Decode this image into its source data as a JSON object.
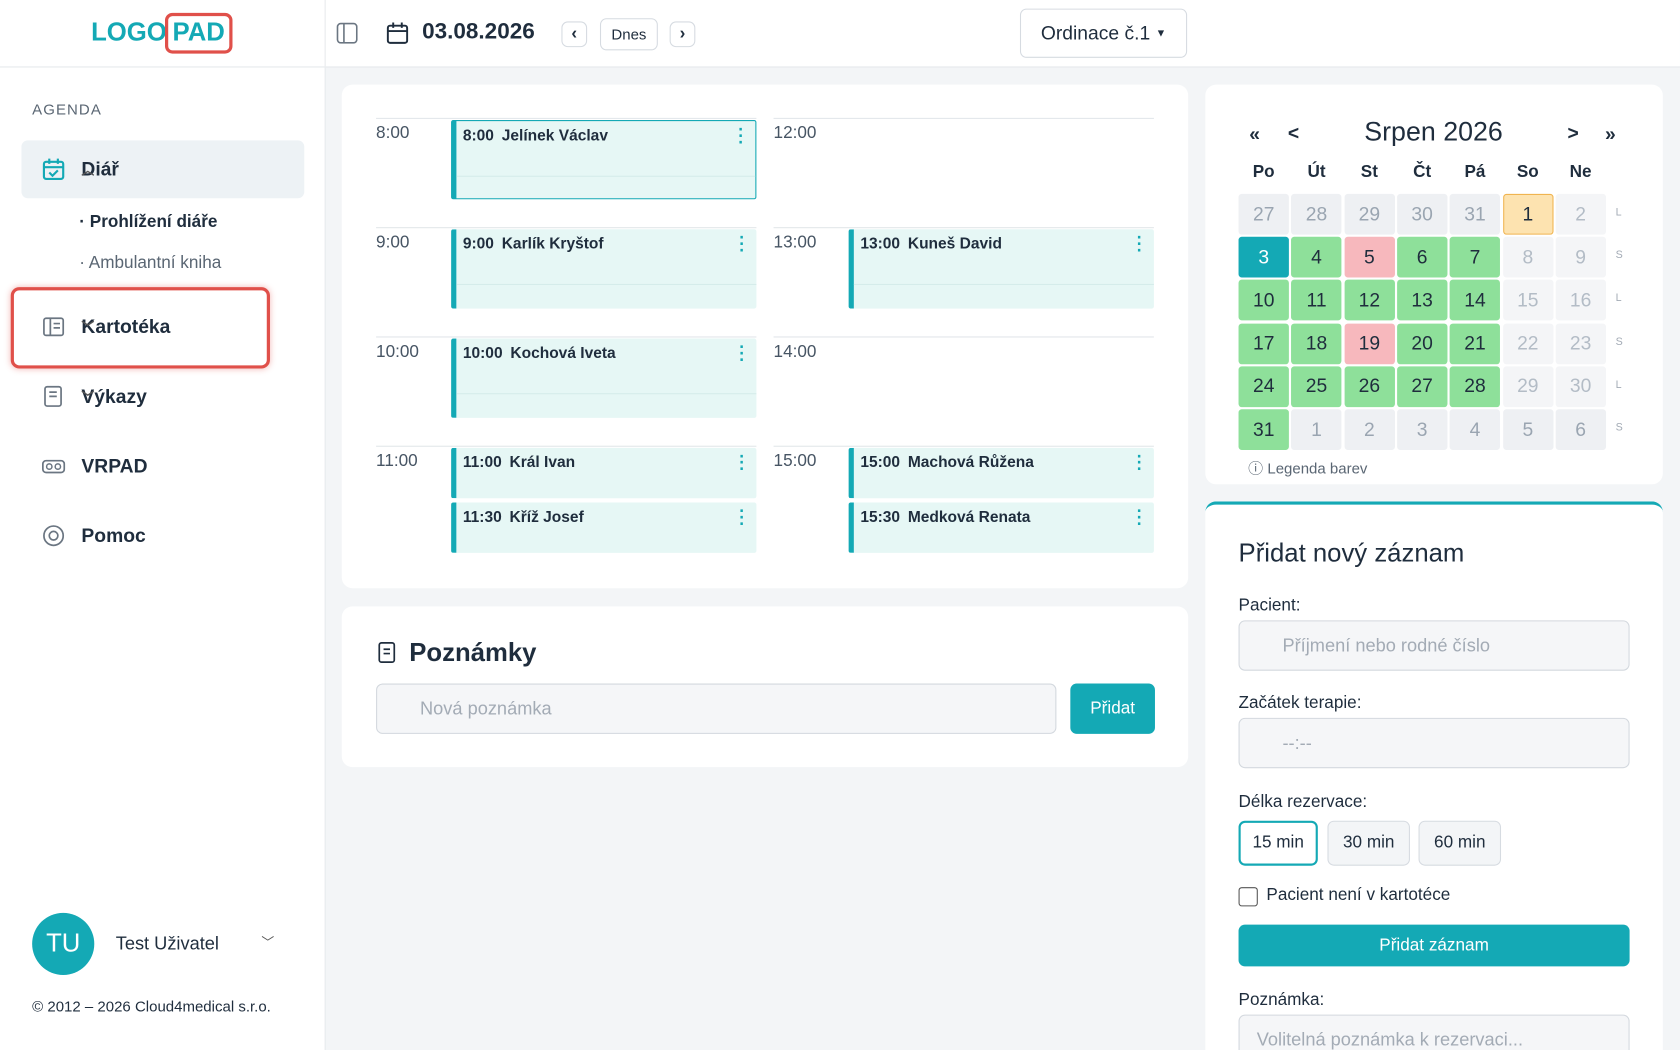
{
  "logo": {
    "left": "LOGO",
    "right": "PAD"
  },
  "sidebar": {
    "section": "AGENDA",
    "nav": [
      {
        "label": "Diář",
        "children": [
          "Prohlížení diáře",
          "Ambulantní kniha"
        ]
      },
      {
        "label": "Kartotéka"
      },
      {
        "label": "Výkazy"
      },
      {
        "label": "VRPAD"
      },
      {
        "label": "Pomoc"
      }
    ],
    "user": {
      "initials": "TU",
      "name": "Test Uživatel"
    },
    "footer": "© 2012 – 2026 Cloud4medical s.r.o."
  },
  "topbar": {
    "date": "03.08.2026",
    "today": "Dnes",
    "office": "Ordinace č.1"
  },
  "schedule": {
    "columns": [
      {
        "hours": [
          {
            "time": "8:00",
            "appointments": [
              {
                "time": "8:00",
                "name": "Jelínek Václav"
              }
            ]
          },
          {
            "time": "9:00",
            "appointments": [
              {
                "time": "9:00",
                "name": "Karlík Kryštof"
              }
            ]
          },
          {
            "time": "10:00",
            "appointments": [
              {
                "time": "10:00",
                "name": "Kochová Iveta"
              }
            ]
          },
          {
            "time": "11:00",
            "appointments": [
              {
                "time": "11:00",
                "name": "Král Ivan"
              },
              {
                "time": "11:30",
                "name": "Kříž Josef"
              }
            ]
          }
        ]
      },
      {
        "hours": [
          {
            "time": "12:00",
            "appointments": []
          },
          {
            "time": "13:00",
            "appointments": [
              {
                "time": "13:00",
                "name": "Kuneš David"
              }
            ]
          },
          {
            "time": "14:00",
            "appointments": []
          },
          {
            "time": "15:00",
            "appointments": [
              {
                "time": "15:00",
                "name": "Machová Růžena"
              },
              {
                "time": "15:30",
                "name": "Medková Renata"
              }
            ]
          }
        ]
      }
    ]
  },
  "notes": {
    "title": "Poznámky",
    "placeholder": "Nová poznámka",
    "button": "Přidat"
  },
  "calendar": {
    "nav": {
      "prev_year": "«",
      "prev": "<",
      "next": ">",
      "next_year": "»"
    },
    "title": "Srpen 2026",
    "weekdays": [
      "Po",
      "Út",
      "St",
      "Čt",
      "Pá",
      "So",
      "Ne"
    ],
    "week_marks": [
      "L",
      "S",
      "L",
      "S",
      "L",
      "S"
    ],
    "weeks": [
      [
        {
          "day": 27,
          "color": "#eef0f3",
          "text_color": "#9aa5b1"
        },
        {
          "day": 28,
          "color": "#eef0f3",
          "text_color": "#9aa5b1"
        },
        {
          "day": 29,
          "color": "#eef0f3",
          "text_color": "#9aa5b1"
        },
        {
          "day": 30,
          "color": "#eef0f3",
          "text_color": "#9aa5b1"
        },
        {
          "day": 31,
          "color": "#eef0f3",
          "text_color": "#9aa5b1"
        },
        {
          "day": 1,
          "color": "#fde3b0",
          "text_color": "#1f2d3d"
        },
        {
          "day": 2,
          "color": "#f4f5f7",
          "text_color": "#b3bcc6"
        }
      ],
      [
        {
          "day": 3,
          "color": "#14a9b5",
          "text_color": "#ffffff"
        },
        {
          "day": 4,
          "color": "#8ee09a",
          "text_color": "#1f2d3d"
        },
        {
          "day": 5,
          "color": "#f7b8bd",
          "text_color": "#1f2d3d"
        },
        {
          "day": 6,
          "color": "#8ee09a",
          "text_color": "#1f2d3d"
        },
        {
          "day": 7,
          "color": "#8ee09a",
          "text_color": "#1f2d3d"
        },
        {
          "day": 8,
          "color": "#f4f5f7",
          "text_color": "#b3bcc6"
        },
        {
          "day": 9,
          "color": "#f4f5f7",
          "text_color": "#b3bcc6"
        }
      ],
      [
        {
          "day": 10,
          "color": "#8ee09a",
          "text_color": "#1f2d3d"
        },
        {
          "day": 11,
          "color": "#8ee09a",
          "text_color": "#1f2d3d"
        },
        {
          "day": 12,
          "color": "#8ee09a",
          "text_color": "#1f2d3d"
        },
        {
          "day": 13,
          "color": "#8ee09a",
          "text_color": "#1f2d3d"
        },
        {
          "day": 14,
          "color": "#8ee09a",
          "text_color": "#1f2d3d"
        },
        {
          "day": 15,
          "color": "#f4f5f7",
          "text_color": "#b3bcc6"
        },
        {
          "day": 16,
          "color": "#f4f5f7",
          "text_color": "#b3bcc6"
        }
      ],
      [
        {
          "day": 17,
          "color": "#8ee09a",
          "text_color": "#1f2d3d"
        },
        {
          "day": 18,
          "color": "#8ee09a",
          "text_color": "#1f2d3d"
        },
        {
          "day": 19,
          "color": "#f7b8bd",
          "text_color": "#1f2d3d"
        },
        {
          "day": 20,
          "color": "#8ee09a",
          "text_color": "#1f2d3d"
        },
        {
          "day": 21,
          "color": "#8ee09a",
          "text_color": "#1f2d3d"
        },
        {
          "day": 22,
          "color": "#f4f5f7",
          "text_color": "#b3bcc6"
        },
        {
          "day": 23,
          "color": "#f4f5f7",
          "text_color": "#b3bcc6"
        }
      ],
      [
        {
          "day": 24,
          "color": "#8ee09a",
          "text_color": "#1f2d3d"
        },
        {
          "day": 25,
          "color": "#8ee09a",
          "text_color": "#1f2d3d"
        },
        {
          "day": 26,
          "color": "#8ee09a",
          "text_color": "#1f2d3d"
        },
        {
          "day": 27,
          "color": "#8ee09a",
          "text_color": "#1f2d3d"
        },
        {
          "day": 28,
          "color": "#8ee09a",
          "text_color": "#1f2d3d"
        },
        {
          "day": 29,
          "color": "#f4f5f7",
          "text_color": "#b3bcc6"
        },
        {
          "day": 30,
          "color": "#f4f5f7",
          "text_color": "#b3bcc6"
        }
      ],
      [
        {
          "day": 31,
          "color": "#8ee09a",
          "text_color": "#1f2d3d"
        },
        {
          "day": 1,
          "color": "#eef0f3",
          "text_color": "#9aa5b1"
        },
        {
          "day": 2,
          "color": "#eef0f3",
          "text_color": "#9aa5b1"
        },
        {
          "day": 3,
          "color": "#eef0f3",
          "text_color": "#9aa5b1"
        },
        {
          "day": 4,
          "color": "#eef0f3",
          "text_color": "#9aa5b1"
        },
        {
          "day": 5,
          "color": "#eef0f3",
          "text_color": "#9aa5b1"
        },
        {
          "day": 6,
          "color": "#eef0f3",
          "text_color": "#9aa5b1"
        }
      ]
    ],
    "legend": "Legenda barev"
  },
  "form": {
    "title": "Přidat nový záznam",
    "patient_label": "Pacient:",
    "patient_placeholder": "Příjmení nebo rodné číslo",
    "start_label": "Začátek terapie:",
    "start_placeholder": "--:--",
    "length_label": "Délka rezervace:",
    "length_options": [
      "15 min",
      "30 min",
      "60 min"
    ],
    "checkbox": "Pacient není v kartotéce",
    "submit": "Přidat záznam",
    "note_label": "Poznámka:",
    "note_placeholder": "Volitelná poznámka k rezervaci..."
  }
}
